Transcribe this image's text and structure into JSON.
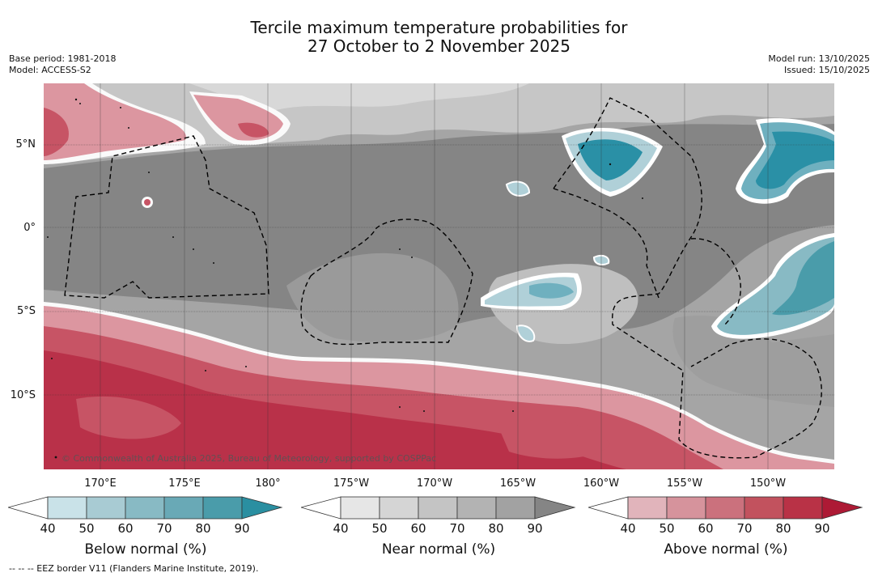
{
  "header": {
    "title_line1": "Tercile maximum temperature probabilities for",
    "title_line2": "27 October to 2 November 2025",
    "base_period": "Base period: 1981-2018",
    "model": "Model: ACCESS-S2",
    "model_run": "Model run: 13/10/2025",
    "issued": "Issued: 15/10/2025"
  },
  "map": {
    "lat_labels": [
      "5°N",
      "0°",
      "5°S",
      "10°S"
    ],
    "lon_labels": [
      "170°E",
      "175°E",
      "180°",
      "175°W",
      "170°W",
      "165°W",
      "160°W",
      "155°W",
      "150°W"
    ],
    "copyright": "© Commonwealth of Australia 2025, Bureau of Meteorology, supported by COSPPac",
    "colors": {
      "near_dark": "#858585",
      "near_mid": "#a5a5a5",
      "near_light": "#c6c6c6",
      "above_dark": "#b93149",
      "above_mid": "#c75465",
      "above_light": "#dc96a0",
      "below_dark": "#2a90a6",
      "below_mid": "#6fb0bf",
      "below_light": "#b0d0d8"
    }
  },
  "colorbars": [
    {
      "title": "Below normal (%)",
      "ticks": [
        "40",
        "50",
        "60",
        "70",
        "80",
        "90"
      ],
      "colors": [
        "#ffffff",
        "#c9e2e8",
        "#a8cbd3",
        "#88bac4",
        "#69a9b6",
        "#4a9caa",
        "#2a8fa1"
      ]
    },
    {
      "title": "Near normal (%)",
      "ticks": [
        "40",
        "50",
        "60",
        "70",
        "80",
        "90"
      ],
      "colors": [
        "#ffffff",
        "#e6e6e6",
        "#d5d5d5",
        "#c4c4c4",
        "#b3b3b3",
        "#a2a2a2",
        "#858585"
      ]
    },
    {
      "title": "Above normal (%)",
      "ticks": [
        "40",
        "50",
        "60",
        "70",
        "80",
        "90"
      ],
      "colors": [
        "#ffffff",
        "#e1b4bb",
        "#d6939c",
        "#cb717d",
        "#c2525e",
        "#b93246",
        "#ad1a35"
      ]
    }
  ],
  "footer": {
    "eez_legend": "-- -- -- EEZ border V11 (Flanders Marine Institute, 2019)."
  }
}
